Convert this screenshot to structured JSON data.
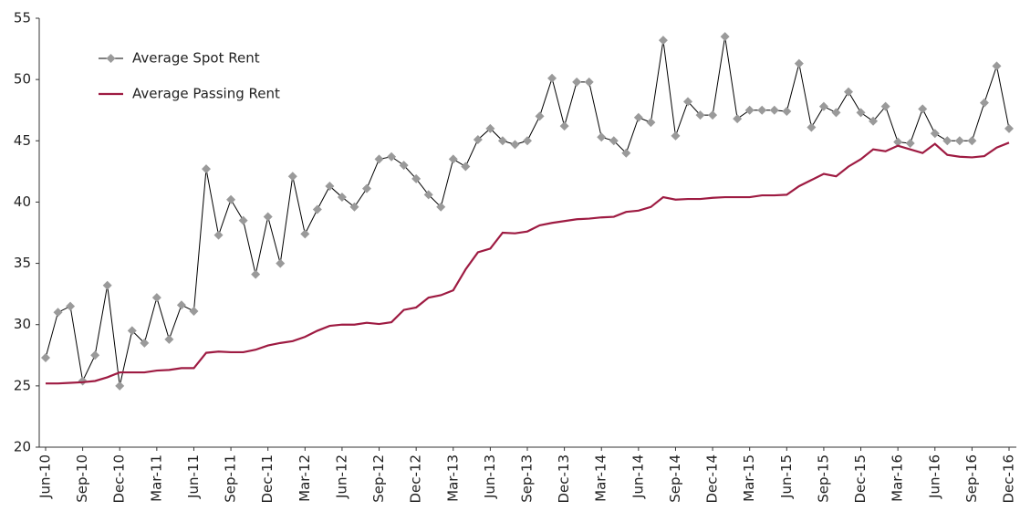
{
  "chart_data": {
    "type": "line",
    "categories": [
      "Jun-10",
      null,
      null,
      "Sep-10",
      null,
      null,
      "Dec-10",
      null,
      null,
      "Mar-11",
      null,
      null,
      "Jun-11",
      null,
      null,
      "Sep-11",
      null,
      null,
      "Dec-11",
      null,
      null,
      "Mar-12",
      null,
      null,
      "Jun-12",
      null,
      null,
      "Sep-12",
      null,
      null,
      "Dec-12",
      null,
      null,
      "Mar-13",
      null,
      null,
      "Jun-13",
      null,
      null,
      "Sep-13",
      null,
      null,
      "Dec-13",
      null,
      null,
      "Mar-14",
      null,
      null,
      "Jun-14",
      null,
      null,
      "Sep-14",
      null,
      null,
      "Dec-14",
      null,
      null,
      "Mar-15",
      null,
      null,
      "Jun-15",
      null,
      null,
      "Sep-15",
      null,
      null,
      "Dec-15",
      null,
      null,
      "Mar-16",
      null,
      null,
      "Jun-16",
      null,
      null,
      "Sep-16",
      null,
      null,
      "Dec-16"
    ],
    "series": [
      {
        "name": "Average Spot Rent",
        "color": "#000000",
        "marker_color": "#9a9a9a",
        "marker": "diamond",
        "values": [
          27.3,
          31.0,
          31.5,
          25.4,
          27.5,
          33.2,
          25.0,
          29.5,
          28.5,
          32.2,
          28.8,
          31.6,
          31.1,
          42.7,
          37.3,
          40.2,
          38.5,
          34.1,
          38.8,
          35.0,
          42.1,
          37.4,
          39.4,
          41.3,
          40.4,
          39.6,
          41.1,
          43.5,
          43.7,
          43.0,
          41.9,
          40.6,
          39.6,
          43.5,
          42.9,
          45.1,
          46.0,
          45.0,
          44.7,
          45.0,
          47.0,
          50.1,
          46.2,
          49.8,
          49.8,
          45.3,
          45.0,
          44.0,
          46.9,
          46.5,
          53.2,
          45.4,
          48.2,
          47.1,
          47.1,
          53.5,
          46.8,
          47.5,
          47.5,
          47.5,
          47.4,
          51.3,
          46.1,
          47.8,
          47.3,
          49.0,
          47.3,
          46.6,
          47.8,
          44.9,
          44.8,
          47.6,
          45.6,
          45.0,
          45.0,
          45.0,
          48.1,
          51.1,
          46.0
        ]
      },
      {
        "name": "Average Passing Rent",
        "color": "#9e1b42",
        "values": [
          25.2,
          25.2,
          25.25,
          25.3,
          25.4,
          25.7,
          26.1,
          26.1,
          26.1,
          26.25,
          26.3,
          26.45,
          26.45,
          27.7,
          27.8,
          27.75,
          27.75,
          27.95,
          28.3,
          28.5,
          28.65,
          29.0,
          29.5,
          29.9,
          30.0,
          30.0,
          30.15,
          30.05,
          30.2,
          31.2,
          31.4,
          32.2,
          32.4,
          32.8,
          34.5,
          35.9,
          36.2,
          37.5,
          37.45,
          37.6,
          38.1,
          38.3,
          38.45,
          38.6,
          38.65,
          38.75,
          38.8,
          39.2,
          39.3,
          39.6,
          40.4,
          40.2,
          40.25,
          40.25,
          40.35,
          40.4,
          40.4,
          40.4,
          40.55,
          40.55,
          40.6,
          41.3,
          41.8,
          42.3,
          42.1,
          42.9,
          43.5,
          44.3,
          44.15,
          44.6,
          44.3,
          44.0,
          44.75,
          43.85,
          43.7,
          43.65,
          43.75,
          44.45,
          44.85
        ]
      }
    ],
    "ylim": [
      20,
      55
    ],
    "yticks": [
      20,
      25,
      30,
      35,
      40,
      45,
      50,
      55
    ],
    "grid": false,
    "legend": "upper left"
  }
}
